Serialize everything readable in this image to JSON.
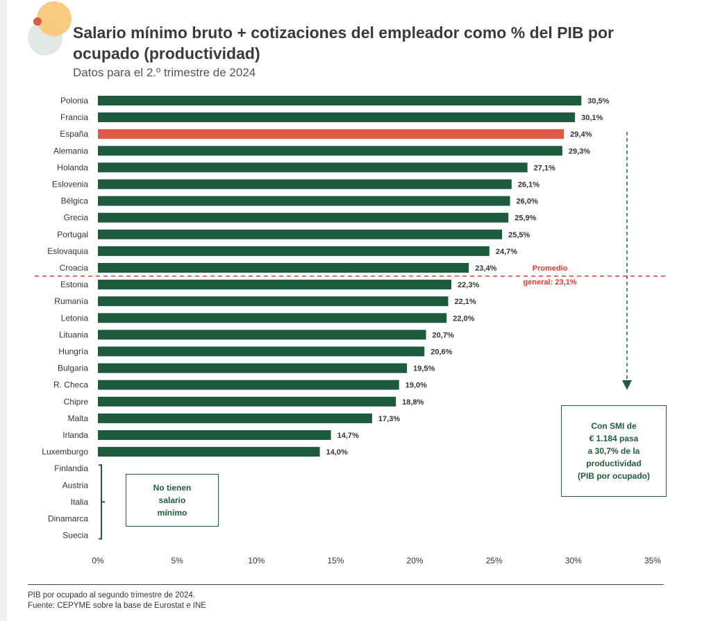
{
  "title": "Salario mínimo bruto + cotizaciones del empleador como % del PIB por ocupado (productividad)",
  "subtitle": "Datos para el 2.º trimestre de 2024",
  "colors": {
    "bar": "#1e5b3c",
    "highlight": "#dd5a45",
    "average_line": "#e23b2e"
  },
  "chart_data": {
    "type": "bar",
    "orientation": "horizontal",
    "categories": [
      "Polonia",
      "Francia",
      "España",
      "Alemania",
      "Holanda",
      "Eslovenia",
      "Bélgica",
      "Grecia",
      "Portugal",
      "Eslovaquia",
      "Croacia",
      "Estonia",
      "Rumanía",
      "Letonia",
      "Lituania",
      "Hungría",
      "Bulgaria",
      "R. Checa",
      "Chipre",
      "Malta",
      "Irlanda",
      "Luxemburgo",
      "Finlandia",
      "Austria",
      "Italia",
      "Dinamarca",
      "Suecia"
    ],
    "values": [
      30.5,
      30.1,
      29.4,
      29.3,
      27.1,
      26.1,
      26.0,
      25.9,
      25.5,
      24.7,
      23.4,
      22.3,
      22.1,
      22.0,
      20.7,
      20.6,
      19.5,
      19.0,
      18.8,
      17.3,
      14.7,
      14.0,
      null,
      null,
      null,
      null,
      null
    ],
    "value_labels": [
      "30,5%",
      "30,1%",
      "29,4%",
      "29,3%",
      "27,1%",
      "26,1%",
      "26,0%",
      "25,9%",
      "25,5%",
      "24,7%",
      "23,4%",
      "22,3%",
      "22,1%",
      "22,0%",
      "20,7%",
      "20,6%",
      "19,5%",
      "19,0%",
      "18,8%",
      "17,3%",
      "14,7%",
      "14,0%",
      "",
      "",
      "",
      "",
      ""
    ],
    "highlight_category": "España",
    "xlim": [
      0,
      35
    ],
    "xticks": [
      0,
      5,
      10,
      15,
      20,
      25,
      30,
      35
    ],
    "xtick_labels": [
      "0%",
      "5%",
      "10%",
      "15%",
      "20%",
      "25%",
      "30%",
      "35%"
    ],
    "average": {
      "value": 23.1,
      "label_line1": "Promedio",
      "label_line2": "general: 23,1%"
    },
    "grid": false,
    "legend": "none"
  },
  "annotations": {
    "no_minimum_wage": "No tienen\nsalario\nmínimo",
    "smi_note": "Con SMI de\n€ 1.184 pasa\na 30,7%  de la\nproductividad\n(PIB por ocupado)"
  },
  "footnotes": [
    "PIB por ocupado al segundo trimestre de 2024.",
    "Fuente: CEPYME sobre la base de Eurostat e INE"
  ]
}
